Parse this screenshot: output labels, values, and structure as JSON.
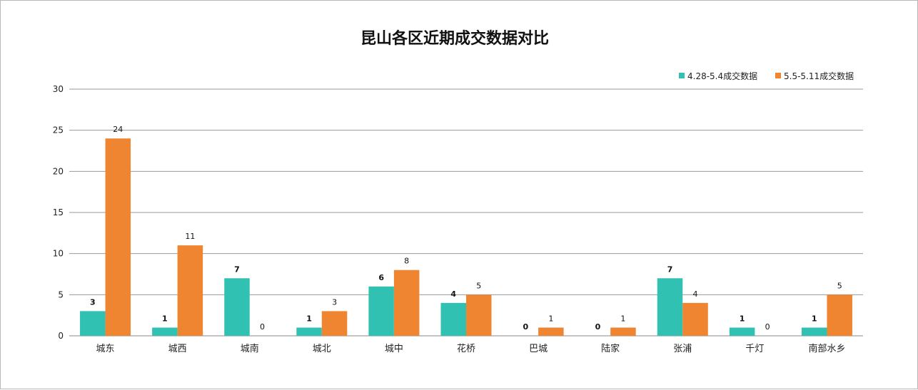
{
  "chart_data": {
    "type": "bar",
    "title": "昆山各区近期成交数据对比",
    "xlabel": "",
    "ylabel": "",
    "categories": [
      "城东",
      "城西",
      "城南",
      "城北",
      "城中",
      "花桥",
      "巴城",
      "陆家",
      "张浦",
      "千灯",
      "南部水乡"
    ],
    "series": [
      {
        "name": "4.28-5.4成交数据",
        "color": "#31C1B3",
        "values": [
          3,
          1,
          7,
          1,
          6,
          4,
          0,
          0,
          7,
          1,
          1
        ]
      },
      {
        "name": "5.5-5.11成交数据",
        "color": "#EF8531",
        "values": [
          24,
          11,
          0,
          3,
          8,
          5,
          1,
          1,
          4,
          0,
          5
        ]
      }
    ],
    "ylim": [
      0,
      30
    ],
    "yticks": [
      0,
      5,
      10,
      15,
      20,
      25,
      30
    ],
    "grid": true,
    "legend_position": "top-right",
    "data_labels": true
  }
}
